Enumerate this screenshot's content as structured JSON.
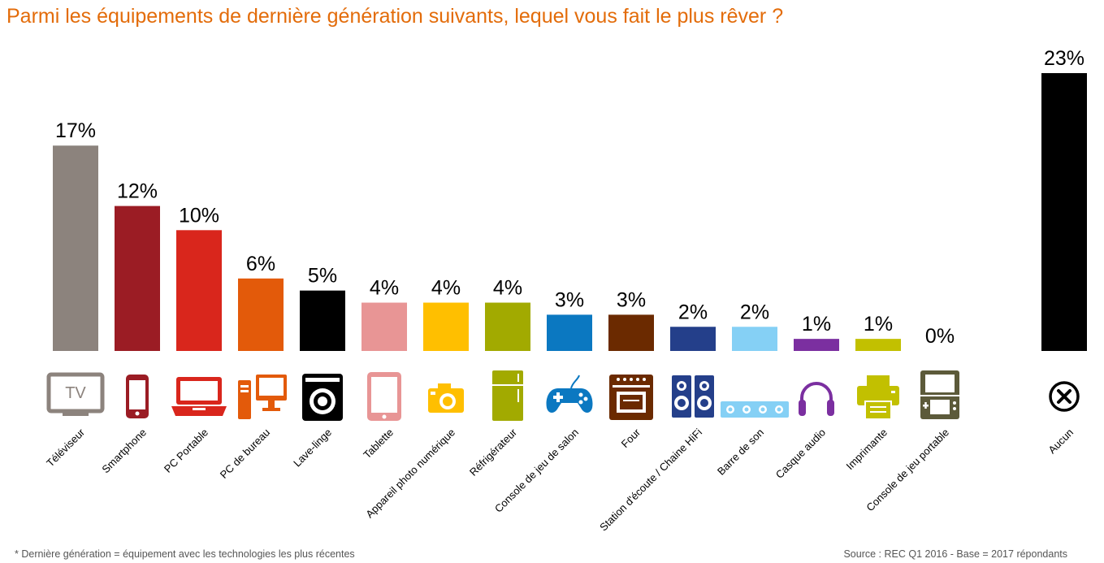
{
  "title": "Parmi les équipements de dernière génération suivants, lequel vous fait le plus rêver ?",
  "footnote": "* Dernière génération = équipement avec les technologies les plus récentes",
  "source": "Source : REC Q1 2016 - Base = 2017 répondants",
  "colors": {
    "title": "#E36C0A"
  },
  "chart_data": {
    "type": "bar",
    "categories": [
      "Téléviseur",
      "Smartphone",
      "PC Portable",
      "PC de bureau",
      "Lave-linge",
      "Tablette",
      "Appareil photo numérique",
      "Réfrigérateur",
      "Console de jeu de salon",
      "Four",
      "Station d'écoute / Chaine HiFi",
      "Barre de son",
      "Casque audio",
      "Imprimante",
      "Console de jeu portable",
      "Aucun"
    ],
    "values": [
      17,
      12,
      10,
      6,
      5,
      4,
      4,
      4,
      3,
      3,
      2,
      2,
      1,
      1,
      0,
      23
    ],
    "value_labels": [
      "17%",
      "12%",
      "10%",
      "6%",
      "5%",
      "4%",
      "4%",
      "4%",
      "3%",
      "3%",
      "2%",
      "2%",
      "1%",
      "1%",
      "0%",
      "23%"
    ],
    "bar_colors": [
      "#8C837D",
      "#9B1C24",
      "#D9261C",
      "#E35A0A",
      "#000000",
      "#E89595",
      "#FFBF00",
      "#A2AA00",
      "#0B78C1",
      "#6B2A00",
      "#243F8A",
      "#85D0F5",
      "#7B2FA0",
      "#C2C000",
      "#5C5A3A",
      "#000000"
    ],
    "icons": [
      "tv-icon",
      "smartphone-icon",
      "laptop-icon",
      "desktop-pc-icon",
      "washing-machine-icon",
      "tablet-icon",
      "camera-icon",
      "fridge-icon",
      "gamepad-icon",
      "oven-icon",
      "speakers-icon",
      "soundbar-icon",
      "headphones-icon",
      "printer-icon",
      "handheld-console-icon",
      "none-icon"
    ],
    "tv_icon_text": "TV",
    "xlabel": "",
    "ylabel": "",
    "ylim": [
      0,
      23
    ],
    "grid": false,
    "legend": "none"
  }
}
